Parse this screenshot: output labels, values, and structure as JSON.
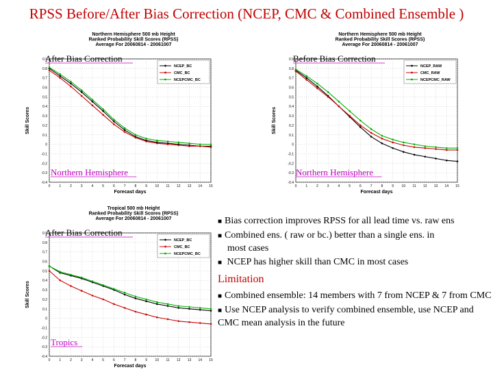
{
  "title": "RPSS Before/After Bias Correction (NCEP, CMC & Combined Ensemble )",
  "colors": {
    "ncep": "#000000",
    "cmc": "#cc0000",
    "combined": "#00b000",
    "overlay_text": "#c000c0",
    "accent": "#c00000"
  },
  "chart_data": [
    {
      "type": "line",
      "header": [
        "Northern Hemisphere 500 mb Height",
        "Ranked Probability Skill Scores (RPSS)",
        "Average For 20060814 - 20061007"
      ],
      "overlay_label": "After Bias Correction",
      "region_label": "Northern Hemisphere",
      "xlabel": "Forecast days",
      "ylabel": "Skill Scores",
      "xlim": [
        0,
        15
      ],
      "ylim": [
        -0.4,
        0.9
      ],
      "x_ticks": [
        "0",
        "1",
        "2",
        "3",
        "4",
        "5",
        "6",
        "7",
        "8",
        "9",
        "10",
        "11",
        "12",
        "13",
        "14",
        "15"
      ],
      "y_ticks": [
        "-0.4",
        "-0.3",
        "-0.2",
        "-0.1",
        "0",
        "0.1",
        "0.2",
        "0.3",
        "0.4",
        "0.5",
        "0.6",
        "0.7",
        "0.8",
        "0.9"
      ],
      "x": [
        0,
        1,
        2,
        3,
        4,
        5,
        6,
        7,
        8,
        9,
        10,
        11,
        12,
        13,
        14,
        15
      ],
      "series": [
        {
          "name": "NCEP_BC",
          "color": "#000000",
          "values": [
            0.8,
            0.72,
            0.64,
            0.55,
            0.45,
            0.35,
            0.24,
            0.15,
            0.08,
            0.04,
            0.02,
            0.01,
            0.0,
            -0.01,
            -0.02,
            -0.02
          ]
        },
        {
          "name": "CMC_BC",
          "color": "#cc0000",
          "values": [
            0.78,
            0.7,
            0.61,
            0.51,
            0.41,
            0.31,
            0.21,
            0.13,
            0.07,
            0.03,
            0.01,
            0.0,
            -0.01,
            -0.02,
            -0.02,
            -0.03
          ]
        },
        {
          "name": "NCEPCMC_BC",
          "color": "#00b000",
          "values": [
            0.81,
            0.74,
            0.66,
            0.57,
            0.47,
            0.37,
            0.26,
            0.17,
            0.1,
            0.06,
            0.04,
            0.03,
            0.02,
            0.01,
            0.0,
            0.0
          ]
        }
      ]
    },
    {
      "type": "line",
      "header": [
        "Northern Hemisphere 500 mb Height",
        "Ranked Probability Skill Scores (RPSS)",
        "Average For 20060814 - 20061007"
      ],
      "overlay_label": "Before Bias Correction",
      "region_label": "Northern Hemisphere",
      "xlabel": "Forecast days",
      "ylabel": "Skill Scores",
      "xlim": [
        0,
        15
      ],
      "ylim": [
        -0.4,
        0.9
      ],
      "x_ticks": [
        "0",
        "1",
        "2",
        "3",
        "4",
        "5",
        "6",
        "7",
        "8",
        "9",
        "10",
        "11",
        "12",
        "13",
        "14",
        "15"
      ],
      "y_ticks": [
        "-0.4",
        "-0.3",
        "-0.2",
        "-0.1",
        "0",
        "0.1",
        "0.2",
        "0.3",
        "0.4",
        "0.5",
        "0.6",
        "0.7",
        "0.8",
        "0.9"
      ],
      "x": [
        0,
        1,
        2,
        3,
        4,
        5,
        6,
        7,
        8,
        9,
        10,
        11,
        12,
        13,
        14,
        15
      ],
      "series": [
        {
          "name": "NCEP_RAW",
          "color": "#000000",
          "values": [
            0.78,
            0.7,
            0.61,
            0.51,
            0.4,
            0.29,
            0.18,
            0.08,
            0.01,
            -0.04,
            -0.08,
            -0.11,
            -0.13,
            -0.15,
            -0.17,
            -0.18
          ]
        },
        {
          "name": "CMC_RAW",
          "color": "#cc0000",
          "values": [
            0.77,
            0.68,
            0.59,
            0.5,
            0.4,
            0.3,
            0.2,
            0.12,
            0.06,
            0.02,
            -0.01,
            -0.03,
            -0.04,
            -0.05,
            -0.06,
            -0.06
          ]
        },
        {
          "name": "NCEPCMC_RAW",
          "color": "#00b000",
          "values": [
            0.79,
            0.72,
            0.64,
            0.55,
            0.45,
            0.35,
            0.25,
            0.16,
            0.09,
            0.05,
            0.02,
            0.0,
            -0.02,
            -0.03,
            -0.04,
            -0.04
          ]
        }
      ]
    },
    {
      "type": "line",
      "header": [
        "Tropical 500 mb Height",
        "Ranked Probability Skill Scores (RPSS)",
        "Average For 20060814 - 20061007"
      ],
      "overlay_label": "After Bias Correction",
      "region_label": "Tropics",
      "xlabel": "Forecast days",
      "ylabel": "Skill Scores",
      "xlim": [
        0,
        15
      ],
      "ylim": [
        -0.4,
        0.9
      ],
      "x_ticks": [
        "0",
        "1",
        "2",
        "3",
        "4",
        "5",
        "6",
        "7",
        "8",
        "9",
        "10",
        "11",
        "12",
        "13",
        "14",
        "15"
      ],
      "y_ticks": [
        "-0.4",
        "-0.3",
        "-0.2",
        "-0.1",
        "0",
        "0.1",
        "0.2",
        "0.3",
        "0.4",
        "0.5",
        "0.6",
        "0.7",
        "0.8",
        "0.9"
      ],
      "x": [
        0,
        1,
        2,
        3,
        4,
        5,
        6,
        7,
        8,
        9,
        10,
        11,
        12,
        13,
        14,
        15
      ],
      "series": [
        {
          "name": "NCEP_BC",
          "color": "#000000",
          "values": [
            0.55,
            0.48,
            0.45,
            0.42,
            0.38,
            0.34,
            0.3,
            0.25,
            0.21,
            0.18,
            0.15,
            0.13,
            0.11,
            0.1,
            0.09,
            0.08
          ]
        },
        {
          "name": "CMC_BC",
          "color": "#cc0000",
          "values": [
            0.5,
            0.4,
            0.34,
            0.29,
            0.24,
            0.2,
            0.15,
            0.11,
            0.07,
            0.04,
            0.01,
            -0.01,
            -0.03,
            -0.04,
            -0.05,
            -0.06
          ]
        },
        {
          "name": "NCEPCMC_BC",
          "color": "#00b000",
          "values": [
            0.55,
            0.49,
            0.46,
            0.43,
            0.39,
            0.35,
            0.31,
            0.27,
            0.23,
            0.2,
            0.17,
            0.15,
            0.13,
            0.12,
            0.11,
            0.1
          ]
        }
      ]
    }
  ],
  "bullets": [
    "Bias correction improves RPSS for all lead time vs. raw ens",
    "Combined ens. ( raw or bc.)  better than a single ens. in",
    "most cases",
    "NCEP has higher skill than CMC in most cases"
  ],
  "limitation": {
    "heading": "Limitation",
    "items": [
      "Combined ensemble: 14 members with 7 from NCEP & 7 from CMC",
      "Use NCEP analysis to verify combined ensemble, use NCEP and CMC mean analysis in the future"
    ]
  }
}
